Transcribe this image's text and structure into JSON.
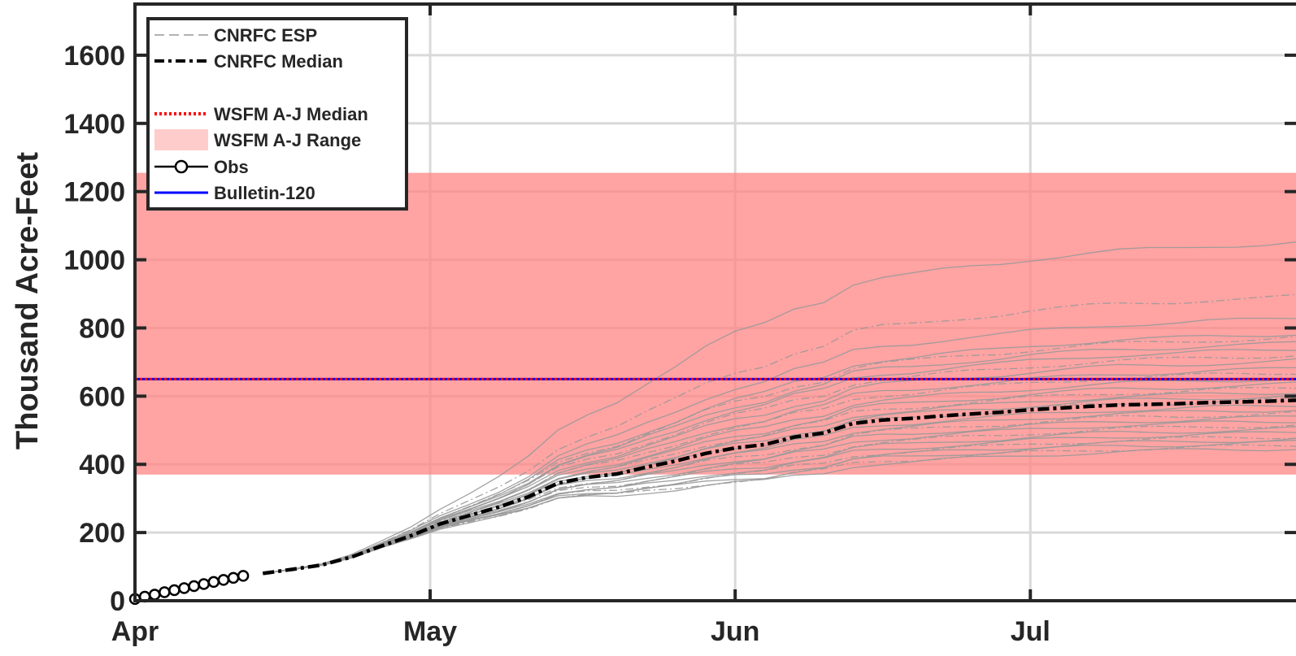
{
  "chart_data": {
    "type": "line",
    "ylabel": "Thousand Acre-Feet",
    "ylim": [
      0,
      1750
    ],
    "yticks": [
      0,
      200,
      400,
      600,
      800,
      1000,
      1200,
      1400,
      1600
    ],
    "xlim_days": [
      0,
      118
    ],
    "xticks": [
      {
        "day": 0,
        "label": "Apr"
      },
      {
        "day": 30,
        "label": "May"
      },
      {
        "day": 61,
        "label": "Jun"
      },
      {
        "day": 91,
        "label": "Jul"
      }
    ],
    "grid": true,
    "legend_position": "top-left",
    "colors": {
      "range_fill": "#ff8080",
      "median_line": "#ff0000",
      "bulletin_line": "#0000ff",
      "esp_line": "#999999",
      "cnrfc_median": "#000000",
      "obs": "#000000"
    },
    "wsfm_range": [
      370,
      1255
    ],
    "wsfm_median": 650,
    "bulletin_120": 650,
    "obs": {
      "days": [
        0,
        1,
        2,
        3,
        4,
        5,
        6,
        7,
        8,
        9,
        10,
        11
      ],
      "values": [
        5,
        12,
        18,
        25,
        31,
        37,
        43,
        49,
        55,
        61,
        67,
        73
      ]
    },
    "cnrfc_median": {
      "days": [
        13,
        16,
        19,
        22,
        25,
        28,
        31,
        34,
        37,
        40,
        43,
        46,
        49,
        52,
        55,
        58,
        61,
        64,
        67,
        70,
        73,
        76,
        79,
        82,
        85,
        88,
        91,
        94,
        97,
        100,
        103,
        106,
        109,
        112,
        115,
        118
      ],
      "values": [
        80,
        92,
        105,
        128,
        160,
        190,
        225,
        250,
        275,
        305,
        345,
        362,
        372,
        392,
        410,
        432,
        448,
        458,
        480,
        492,
        520,
        530,
        535,
        542,
        548,
        553,
        560,
        565,
        570,
        574,
        576,
        578,
        581,
        583,
        585,
        588
      ]
    },
    "esp_finals": [
      995,
      855,
      800,
      760,
      750,
      735,
      720,
      705,
      690,
      670,
      660,
      645,
      630,
      620,
      610,
      600,
      590,
      575,
      565,
      555,
      545,
      535,
      525,
      515,
      505,
      495,
      488,
      480,
      472,
      465
    ],
    "legend": [
      {
        "key": "esp",
        "label": "CNRFC ESP"
      },
      {
        "key": "cnrfc_median",
        "label": "CNRFC Median"
      },
      {
        "key": "blank",
        "label": ""
      },
      {
        "key": "wsfm_median",
        "label": "WSFM A-J Median"
      },
      {
        "key": "wsfm_range",
        "label": "WSFM A-J Range"
      },
      {
        "key": "obs",
        "label": "Obs"
      },
      {
        "key": "bulletin",
        "label": "Bulletin-120"
      }
    ]
  }
}
